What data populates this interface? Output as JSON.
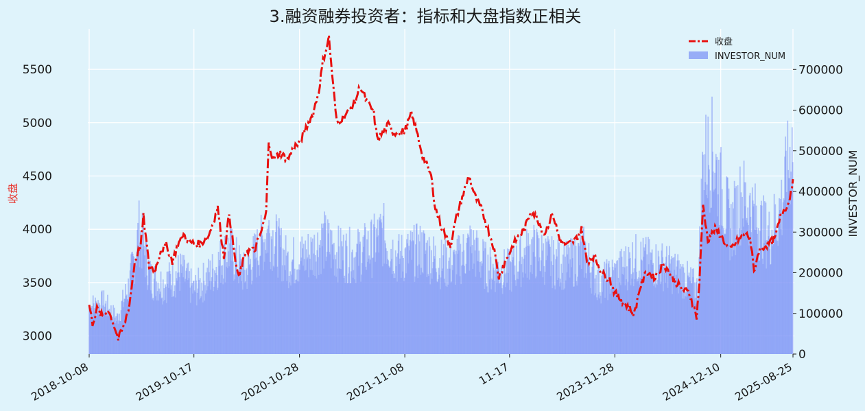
{
  "chart_data": {
    "type": "bar+line",
    "title": "3.融资融券投资者：指标和大盘指数正相关",
    "ylabel_left": "收盘",
    "ylabel_right": "INVESTOR_NUM",
    "xlabel": "",
    "x_ticks": [
      "2018-10-08",
      "2019-10-17",
      "2020-10-28",
      "2021-11-08",
      "2022-11-17",
      "2023-11-28",
      "2024-12-10",
      "2025-08-25"
    ],
    "x_ticks_shown": [
      "2018-10-08",
      "2019-10-17",
      "2020-10-28",
      "2021-11-08",
      "11-17",
      "2023-11-28",
      "2024-12-10",
      "2025-08-25"
    ],
    "y_left_ticks": [
      3000,
      3500,
      4000,
      4500,
      5000,
      5500
    ],
    "y_left_range": [
      2830,
      5880
    ],
    "y_right_ticks": [
      0,
      100000,
      200000,
      300000,
      400000,
      500000,
      600000,
      700000
    ],
    "y_right_range": [
      0,
      800000
    ],
    "legend": {
      "placement": "top-right",
      "entries": [
        "收盘",
        "INVESTOR_NUM"
      ]
    },
    "grid": true,
    "series": [
      {
        "name": "收盘",
        "kind": "line",
        "style": "dash-dot",
        "color": "#e8100f",
        "points": [
          [
            "2018-10-08",
            3290
          ],
          [
            "2018-10-20",
            3120
          ],
          [
            "2018-11-05",
            3250
          ],
          [
            "2018-11-25",
            3180
          ],
          [
            "2018-12-15",
            3240
          ],
          [
            "2019-01-05",
            3100
          ],
          [
            "2019-01-20",
            2970
          ],
          [
            "2019-02-10",
            3100
          ],
          [
            "2019-03-01",
            3300
          ],
          [
            "2019-03-20",
            3700
          ],
          [
            "2019-04-10",
            3850
          ],
          [
            "2019-04-20",
            4120
          ],
          [
            "2019-05-10",
            3650
          ],
          [
            "2019-06-01",
            3620
          ],
          [
            "2019-06-20",
            3800
          ],
          [
            "2019-07-10",
            3850
          ],
          [
            "2019-08-01",
            3700
          ],
          [
            "2019-08-20",
            3850
          ],
          [
            "2019-09-10",
            3950
          ],
          [
            "2019-10-01",
            3880
          ],
          [
            "2019-10-17",
            3870
          ],
          [
            "2019-11-10",
            3860
          ],
          [
            "2019-12-10",
            3950
          ],
          [
            "2020-01-10",
            4200
          ],
          [
            "2020-02-01",
            3740
          ],
          [
            "2020-02-20",
            4150
          ],
          [
            "2020-03-10",
            3750
          ],
          [
            "2020-03-25",
            3540
          ],
          [
            "2020-04-20",
            3800
          ],
          [
            "2020-05-20",
            3800
          ],
          [
            "2020-06-15",
            3990
          ],
          [
            "2020-07-01",
            4150
          ],
          [
            "2020-07-10",
            4830
          ],
          [
            "2020-07-25",
            4650
          ],
          [
            "2020-08-20",
            4720
          ],
          [
            "2020-09-15",
            4650
          ],
          [
            "2020-10-10",
            4780
          ],
          [
            "2020-10-28",
            4800
          ],
          [
            "2020-11-20",
            4950
          ],
          [
            "2020-12-15",
            5080
          ],
          [
            "2021-01-05",
            5300
          ],
          [
            "2021-01-20",
            5580
          ],
          [
            "2021-02-10",
            5800
          ],
          [
            "2021-02-25",
            5350
          ],
          [
            "2021-03-10",
            5000
          ],
          [
            "2021-04-01",
            5050
          ],
          [
            "2021-04-20",
            5100
          ],
          [
            "2021-05-15",
            5200
          ],
          [
            "2021-06-01",
            5340
          ],
          [
            "2021-06-25",
            5200
          ],
          [
            "2021-07-20",
            5100
          ],
          [
            "2021-08-01",
            4850
          ],
          [
            "2021-08-20",
            4900
          ],
          [
            "2021-09-10",
            4980
          ],
          [
            "2021-10-01",
            4900
          ],
          [
            "2021-11-08",
            4920
          ],
          [
            "2021-12-01",
            5080
          ],
          [
            "2021-12-20",
            4920
          ],
          [
            "2022-01-10",
            4700
          ],
          [
            "2022-01-25",
            4600
          ],
          [
            "2022-02-10",
            4500
          ],
          [
            "2022-02-25",
            4200
          ],
          [
            "2022-03-15",
            4050
          ],
          [
            "2022-04-01",
            3950
          ],
          [
            "2022-04-20",
            3850
          ],
          [
            "2022-05-10",
            4100
          ],
          [
            "2022-06-01",
            4300
          ],
          [
            "2022-06-25",
            4500
          ],
          [
            "2022-07-15",
            4320
          ],
          [
            "2022-08-10",
            4180
          ],
          [
            "2022-09-01",
            4000
          ],
          [
            "2022-09-20",
            3850
          ],
          [
            "2022-10-10",
            3550
          ],
          [
            "2022-11-01",
            3700
          ],
          [
            "2022-11-17",
            3780
          ],
          [
            "2022-12-10",
            3900
          ],
          [
            "2023-01-10",
            4000
          ],
          [
            "2023-02-01",
            4180
          ],
          [
            "2023-02-25",
            4100
          ],
          [
            "2023-03-20",
            3950
          ],
          [
            "2023-04-20",
            4150
          ],
          [
            "2023-05-15",
            3900
          ],
          [
            "2023-06-10",
            3850
          ],
          [
            "2023-07-10",
            3900
          ],
          [
            "2023-08-01",
            4000
          ],
          [
            "2023-08-20",
            3700
          ],
          [
            "2023-09-15",
            3750
          ],
          [
            "2023-10-15",
            3580
          ],
          [
            "2023-11-10",
            3530
          ],
          [
            "2023-11-28",
            3400
          ],
          [
            "2024-01-05",
            3300
          ],
          [
            "2024-02-05",
            3200
          ],
          [
            "2024-02-25",
            3450
          ],
          [
            "2024-03-20",
            3600
          ],
          [
            "2024-04-20",
            3550
          ],
          [
            "2024-05-20",
            3680
          ],
          [
            "2024-06-20",
            3550
          ],
          [
            "2024-07-20",
            3450
          ],
          [
            "2024-08-20",
            3400
          ],
          [
            "2024-09-15",
            3180
          ],
          [
            "2024-09-25",
            3500
          ],
          [
            "2024-10-08",
            4230
          ],
          [
            "2024-10-25",
            3900
          ],
          [
            "2024-11-20",
            4000
          ],
          [
            "2024-12-10",
            3950
          ],
          [
            "2025-01-10",
            3800
          ],
          [
            "2025-02-10",
            3900
          ],
          [
            "2025-03-10",
            3950
          ],
          [
            "2025-03-25",
            3920
          ],
          [
            "2025-04-08",
            3600
          ],
          [
            "2025-04-25",
            3800
          ],
          [
            "2025-05-20",
            3850
          ],
          [
            "2025-06-20",
            3900
          ],
          [
            "2025-07-15",
            4150
          ],
          [
            "2025-08-10",
            4250
          ],
          [
            "2025-08-25",
            4470
          ]
        ]
      },
      {
        "name": "INVESTOR_NUM",
        "kind": "bar",
        "color": "#7f96f5",
        "envelope": [
          [
            "2018-10-08",
            150000
          ],
          [
            "2018-12-01",
            160000
          ],
          [
            "2019-01-15",
            110000
          ],
          [
            "2019-03-01",
            220000
          ],
          [
            "2019-04-05",
            390000
          ],
          [
            "2019-05-15",
            240000
          ],
          [
            "2019-07-01",
            220000
          ],
          [
            "2019-09-01",
            260000
          ],
          [
            "2019-10-17",
            200000
          ],
          [
            "2019-12-15",
            250000
          ],
          [
            "2020-02-20",
            330000
          ],
          [
            "2020-04-15",
            250000
          ],
          [
            "2020-07-10",
            390000
          ],
          [
            "2020-09-15",
            290000
          ],
          [
            "2020-10-28",
            300000
          ],
          [
            "2020-12-10",
            320000
          ],
          [
            "2021-01-20",
            360000
          ],
          [
            "2021-03-10",
            320000
          ],
          [
            "2021-05-15",
            310000
          ],
          [
            "2021-07-15",
            340000
          ],
          [
            "2021-08-20",
            380000
          ],
          [
            "2021-10-15",
            300000
          ],
          [
            "2021-11-08",
            310000
          ],
          [
            "2022-01-10",
            330000
          ],
          [
            "2022-03-10",
            290000
          ],
          [
            "2022-05-01",
            280000
          ],
          [
            "2022-07-01",
            340000
          ],
          [
            "2022-09-01",
            270000
          ],
          [
            "2022-11-17",
            260000
          ],
          [
            "2023-02-01",
            330000
          ],
          [
            "2023-04-20",
            290000
          ],
          [
            "2023-06-15",
            280000
          ],
          [
            "2023-08-10",
            320000
          ],
          [
            "2023-10-01",
            220000
          ],
          [
            "2023-11-28",
            250000
          ],
          [
            "2024-02-05",
            300000
          ],
          [
            "2024-05-20",
            280000
          ],
          [
            "2024-07-20",
            250000
          ],
          [
            "2024-09-20",
            200000
          ],
          [
            "2024-10-08",
            600000
          ],
          [
            "2024-11-10",
            640000
          ],
          [
            "2024-12-10",
            520000
          ],
          [
            "2025-01-15",
            400000
          ],
          [
            "2025-02-25",
            500000
          ],
          [
            "2025-04-10",
            430000
          ],
          [
            "2025-06-01",
            370000
          ],
          [
            "2025-07-15",
            470000
          ],
          [
            "2025-08-25",
            670000
          ]
        ]
      }
    ]
  }
}
